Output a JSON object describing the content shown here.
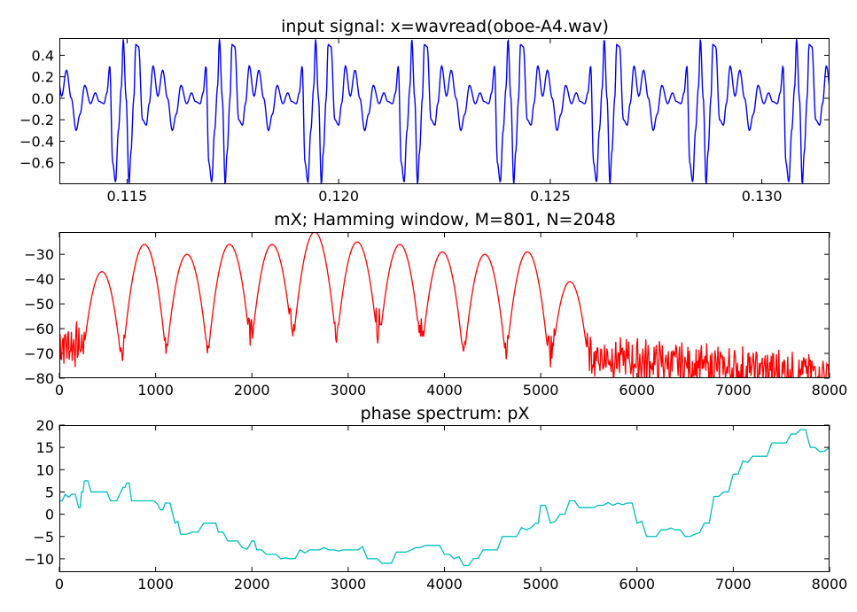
{
  "chart_data": [
    {
      "type": "line",
      "title": "input signal: x=wavread(oboe-A4.wav)",
      "xlabel": "",
      "ylabel": "",
      "xlim": [
        0.1134,
        0.1316
      ],
      "ylim": [
        -0.8,
        0.56
      ],
      "x_ticks": [
        0.115,
        0.12,
        0.125,
        0.13
      ],
      "x_tick_labels": [
        "0.115",
        "0.120",
        "0.125",
        "0.130"
      ],
      "y_ticks": [
        0.4,
        0.2,
        0.0,
        -0.2,
        -0.4,
        -0.6
      ],
      "y_tick_labels": [
        "0.4",
        "0.2",
        "0.0",
        "−0.2",
        "−0.4",
        "−0.6"
      ],
      "grid": false,
      "series": [
        {
          "color": "#0000ff",
          "period_seconds": 0.002273,
          "cycle_shape": {
            "phase": [
              0.0,
              0.04,
              0.08,
              0.11,
              0.15,
              0.2,
              0.25,
              0.3,
              0.35,
              0.39,
              0.44,
              0.5,
              0.55,
              0.59,
              0.64,
              0.67,
              0.7,
              0.73,
              0.76,
              0.79,
              0.82,
              0.84,
              0.87,
              0.9,
              0.92,
              0.95,
              0.97,
              1.0
            ],
            "value": [
              0.48,
              -0.2,
              -0.25,
              -0.05,
              0.3,
              0.02,
              0.26,
              0.0,
              -0.3,
              -0.15,
              0.12,
              -0.05,
              0.05,
              -0.03,
              -0.05,
              0.05,
              0.3,
              -0.6,
              -0.78,
              -0.3,
              0.1,
              0.55,
              0.0,
              -0.8,
              -0.5,
              0.0,
              0.5,
              0.48
            ]
          }
        }
      ]
    },
    {
      "type": "line",
      "title": "mX; Hamming window, M=801, N=2048",
      "xlabel": "",
      "ylabel": "",
      "xlim": [
        0,
        8000
      ],
      "ylim": [
        -80,
        -21
      ],
      "x_ticks": [
        0,
        1000,
        2000,
        3000,
        4000,
        5000,
        6000,
        7000,
        8000
      ],
      "x_tick_labels": [
        "0",
        "1000",
        "2000",
        "3000",
        "4000",
        "5000",
        "6000",
        "7000",
        "8000"
      ],
      "y_ticks": [
        -30,
        -40,
        -50,
        -60,
        -70,
        -80
      ],
      "y_tick_labels": [
        "−30",
        "−40",
        "−50",
        "−60",
        "−70",
        "−80"
      ],
      "grid": false,
      "series": [
        {
          "color": "#ff0000",
          "fundamental_hz": 442,
          "harmonic_peaks": [
            {
              "freq": 442,
              "db": -37
            },
            {
              "freq": 884,
              "db": -26
            },
            {
              "freq": 1326,
              "db": -30
            },
            {
              "freq": 1768,
              "db": -26
            },
            {
              "freq": 2210,
              "db": -26
            },
            {
              "freq": 2652,
              "db": -21
            },
            {
              "freq": 3094,
              "db": -25
            },
            {
              "freq": 3536,
              "db": -26
            },
            {
              "freq": 3978,
              "db": -29
            },
            {
              "freq": 4420,
              "db": -30
            },
            {
              "freq": 4862,
              "db": -29
            },
            {
              "freq": 5304,
              "db": -41
            }
          ],
          "floor_points": [
            {
              "freq": 0,
              "db": -66
            },
            {
              "freq": 1326,
              "db": -70
            },
            {
              "freq": 2652,
              "db": -57
            },
            {
              "freq": 4000,
              "db": -64
            },
            {
              "freq": 5304,
              "db": -70
            },
            {
              "freq": 6000,
              "db": -73
            },
            {
              "freq": 7000,
              "db": -76
            },
            {
              "freq": 8000,
              "db": -78
            }
          ]
        }
      ]
    },
    {
      "type": "line",
      "title": "phase spectrum: pX",
      "xlabel": "",
      "ylabel": "",
      "xlim": [
        0,
        8000
      ],
      "ylim": [
        -13,
        20
      ],
      "x_ticks": [
        0,
        1000,
        2000,
        3000,
        4000,
        5000,
        6000,
        7000,
        8000
      ],
      "x_tick_labels": [
        "0",
        "1000",
        "2000",
        "3000",
        "4000",
        "5000",
        "6000",
        "7000",
        "8000"
      ],
      "y_ticks": [
        20,
        15,
        10,
        5,
        0,
        -5,
        -10
      ],
      "y_tick_labels": [
        "20",
        "15",
        "10",
        "5",
        "0",
        "−5",
        "−10"
      ],
      "grid": false,
      "series": [
        {
          "color": "#00bfbf",
          "x": [
            0,
            60,
            130,
            200,
            230,
            260,
            330,
            460,
            530,
            660,
            700,
            750,
            980,
            1050,
            1100,
            1200,
            1260,
            1380,
            1500,
            1600,
            1650,
            1750,
            1900,
            2000,
            2050,
            2150,
            2300,
            2500,
            2650,
            2800,
            3000,
            3200,
            3350,
            3500,
            3700,
            3800,
            4000,
            4100,
            4200,
            4300,
            4400,
            4500,
            4600,
            4800,
            4950,
            5000,
            5100,
            5200,
            5300,
            5400,
            5600,
            5800,
            6000,
            6100,
            6250,
            6500,
            6600,
            6700,
            6800,
            6900,
            7000,
            7100,
            7200,
            7400,
            7500,
            7600,
            7700,
            7800,
            7900,
            8000
          ],
          "y": [
            3,
            4.5,
            4.5,
            1.5,
            5,
            7.5,
            5,
            5,
            3,
            6,
            7,
            3,
            3,
            1,
            2.5,
            -2,
            -4.5,
            -4,
            -2,
            -2,
            -4,
            -6,
            -7.5,
            -6,
            -8,
            -9,
            -10,
            -8,
            -8,
            -8,
            -8,
            -10,
            -11,
            -8.5,
            -7.5,
            -7,
            -9,
            -10,
            -11.5,
            -10,
            -8,
            -8,
            -5,
            -3,
            -2,
            2,
            -2,
            0,
            3,
            1.5,
            2,
            2.5,
            -2,
            -5,
            -3.5,
            -5,
            -4.5,
            -2,
            4,
            5,
            9,
            12,
            13,
            16,
            16,
            18,
            19,
            15,
            14,
            15
          ]
        }
      ]
    }
  ]
}
